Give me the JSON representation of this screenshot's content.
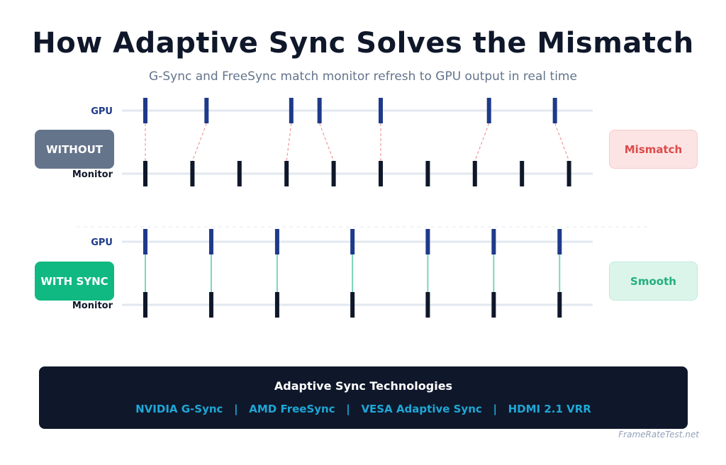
{
  "title": "How Adaptive Sync Solves the Mismatch",
  "subtitle": "G-Sync and FreeSync match monitor refresh to GPU output in real time",
  "without": {
    "mode_label": "WITHOUT",
    "result_label": "Mismatch",
    "gpu_label": "GPU",
    "monitor_label": "Monitor",
    "gpu_frames": [
      0,
      1.3,
      3.1,
      3.7,
      5.0,
      7.3,
      8.7
    ],
    "monitor_refreshes": [
      0,
      1,
      2,
      3,
      4,
      5,
      6,
      7,
      8,
      9
    ],
    "connections": [
      [
        0,
        0
      ],
      [
        1,
        1
      ],
      [
        2,
        3
      ],
      [
        3,
        4
      ],
      [
        4,
        5
      ],
      [
        5,
        7
      ],
      [
        6,
        9
      ]
    ]
  },
  "with_sync": {
    "mode_label": "WITH SYNC",
    "result_label": "Smooth",
    "gpu_label": "GPU",
    "monitor_label": "Monitor",
    "gpu_frames": [
      0,
      1.4,
      2.8,
      4.4,
      6.0,
      7.4,
      8.8
    ],
    "monitor_refreshes": [
      0,
      1.4,
      2.8,
      4.4,
      6.0,
      7.4,
      8.8
    ]
  },
  "footer": {
    "title": "Adaptive Sync Technologies",
    "technologies": [
      "NVIDIA G-Sync",
      "AMD FreeSync",
      "VESA Adaptive Sync",
      "HDMI 2.1 VRR"
    ],
    "separator": "|"
  },
  "watermark": "FrameRateTest.net",
  "colors": {
    "gpu_tick": "#1e3a8a",
    "monitor_tick": "#0f172a",
    "track": "#e2e8f0",
    "mismatch_link": "#f09a9a",
    "sync_link": "#6ed3b0",
    "divider": "#e2e8f0"
  }
}
